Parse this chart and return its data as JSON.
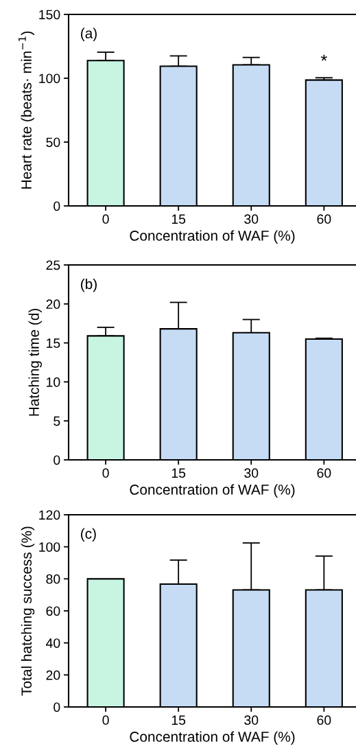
{
  "chart_data": [
    {
      "type": "bar",
      "title": "(a)",
      "xlabel": "Concentration of WAF (%)",
      "ylabel": "Heart rate (beats· min$^{−1}$)",
      "categories": [
        "0",
        "15",
        "30",
        "60"
      ],
      "values": [
        113.8,
        109.4,
        110.5,
        98.6
      ],
      "colors": [
        "#c8f5e2",
        "#c6dcf5",
        "#c6dcf5",
        "#c6dcf5"
      ],
      "errors": [
        [
          113.8,
          120.4
        ],
        [
          109.4,
          117.5
        ],
        [
          110.5,
          116.3
        ],
        [
          98.6,
          100.4
        ]
      ],
      "ylim": [
        0,
        150
      ],
      "yticks": [
        0,
        50,
        100,
        150
      ],
      "annotations": [
        {
          "text": "*",
          "x": "60",
          "y": 100.4
        }
      ],
      "grid": false
    },
    {
      "type": "bar",
      "title": "(b)",
      "xlabel": "Concentration of WAF (%)",
      "ylabel": "Hatching time (d)",
      "categories": [
        "0",
        "15",
        "30",
        "60"
      ],
      "values": [
        15.9,
        16.8,
        16.3,
        15.5
      ],
      "colors": [
        "#c8f5e2",
        "#c6dcf5",
        "#c6dcf5",
        "#c6dcf5"
      ],
      "errors": [
        [
          15.9,
          17.0
        ],
        [
          16.8,
          20.2
        ],
        [
          16.3,
          18.0
        ],
        [
          15.5,
          15.6
        ]
      ],
      "ylim": [
        0,
        25
      ],
      "yticks": [
        0,
        5,
        10,
        15,
        20,
        25
      ],
      "grid": false
    },
    {
      "type": "bar",
      "title": "(c)",
      "xlabel": "Concentration of WAF (%)",
      "ylabel": "Total hatching success (%)",
      "categories": [
        "0",
        "15",
        "30",
        "60"
      ],
      "values": [
        80,
        76.7,
        73.1,
        73.1
      ],
      "colors": [
        "#c8f5e2",
        "#c6dcf5",
        "#c6dcf5",
        "#c6dcf5"
      ],
      "errors": [
        null,
        [
          76.7,
          91.7
        ],
        [
          73.1,
          102.4
        ],
        [
          73.1,
          94.2
        ]
      ],
      "ylim": [
        0,
        120
      ],
      "yticks": [
        0,
        20,
        40,
        60,
        80,
        100,
        120
      ],
      "grid": false
    }
  ]
}
